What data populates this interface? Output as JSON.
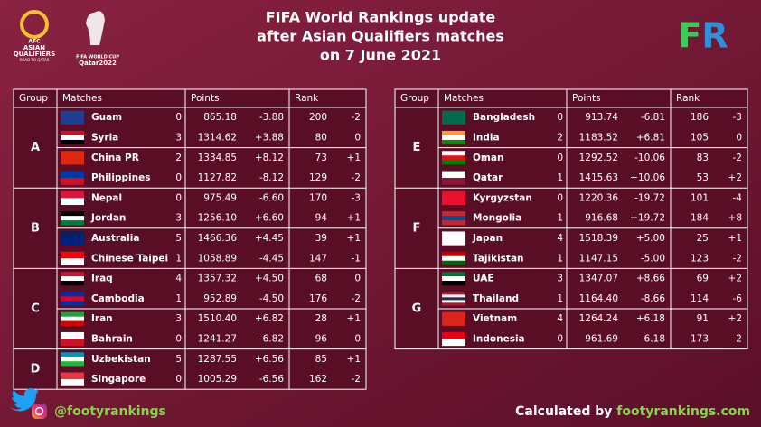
{
  "header": {
    "title_lines": [
      "FIFA World Rankings update",
      "after Asian Qualifiers matches",
      "on 7 June 2021"
    ]
  },
  "logos": {
    "afc": [
      "AFC",
      "ASIAN",
      "QUALIFIERS",
      "ROAD TO QATAR"
    ],
    "fifa": [
      "FIFA WORLD CUP",
      "Qatar2022"
    ],
    "fr": "FR"
  },
  "tables": [
    {
      "columns": [
        "Group",
        "Matches",
        "Points",
        "Rank"
      ],
      "groups": [
        {
          "name": "A",
          "rows": [
            [
              "Guam",
              "0",
              "865.18",
              "-3.88",
              "200",
              "-2"
            ],
            [
              "Syria",
              "3",
              "1314.62",
              "+3.88",
              "80",
              "0"
            ],
            [
              "China PR",
              "2",
              "1334.85",
              "+8.12",
              "73",
              "+1"
            ],
            [
              "Philippines",
              "0",
              "1127.82",
              "-8.12",
              "129",
              "-2"
            ]
          ]
        },
        {
          "name": "B",
          "rows": [
            [
              "Nepal",
              "0",
              "975.49",
              "-6.60",
              "170",
              "-3"
            ],
            [
              "Jordan",
              "3",
              "1256.10",
              "+6.60",
              "94",
              "+1"
            ],
            [
              "Australia",
              "5",
              "1466.36",
              "+4.45",
              "39",
              "+1"
            ],
            [
              "Chinese Taipei",
              "1",
              "1058.89",
              "-4.45",
              "147",
              "-1"
            ]
          ]
        },
        {
          "name": "C",
          "rows": [
            [
              "Iraq",
              "4",
              "1357.32",
              "+4.50",
              "68",
              "0"
            ],
            [
              "Cambodia",
              "1",
              "952.89",
              "-4.50",
              "176",
              "-2"
            ],
            [
              "Iran",
              "3",
              "1510.40",
              "+6.82",
              "28",
              "+1"
            ],
            [
              "Bahrain",
              "0",
              "1241.27",
              "-6.82",
              "96",
              "0"
            ]
          ]
        },
        {
          "name": "D",
          "rows": [
            [
              "Uzbekistan",
              "5",
              "1287.55",
              "+6.56",
              "85",
              "+1"
            ],
            [
              "Singapore",
              "0",
              "1005.29",
              "-6.56",
              "162",
              "-2"
            ]
          ]
        }
      ]
    },
    {
      "columns": [
        "Group",
        "Matches",
        "Points",
        "Rank"
      ],
      "groups": [
        {
          "name": "E",
          "rows": [
            [
              "Bangladesh",
              "0",
              "913.74",
              "-6.81",
              "186",
              "-3"
            ],
            [
              "India",
              "2",
              "1183.52",
              "+6.81",
              "105",
              "0"
            ],
            [
              "Oman",
              "0",
              "1292.52",
              "-10.06",
              "83",
              "-2"
            ],
            [
              "Qatar",
              "1",
              "1415.63",
              "+10.06",
              "53",
              "+2"
            ]
          ]
        },
        {
          "name": "F",
          "rows": [
            [
              "Kyrgyzstan",
              "0",
              "1220.36",
              "-19.72",
              "101",
              "-4"
            ],
            [
              "Mongolia",
              "1",
              "916.68",
              "+19.72",
              "184",
              "+8"
            ],
            [
              "Japan",
              "4",
              "1518.39",
              "+5.00",
              "25",
              "+1"
            ],
            [
              "Tajikistan",
              "1",
              "1147.15",
              "-5.00",
              "123",
              "-2"
            ]
          ]
        },
        {
          "name": "G",
          "rows": [
            [
              "UAE",
              "3",
              "1347.07",
              "+8.66",
              "69",
              "+2"
            ],
            [
              "Thailand",
              "1",
              "1164.40",
              "-8.66",
              "114",
              "-6"
            ],
            [
              "Vietnam",
              "4",
              "1264.24",
              "+6.18",
              "91",
              "+2"
            ],
            [
              "Indonesia",
              "0",
              "961.69",
              "-6.18",
              "173",
              "-2"
            ]
          ]
        }
      ]
    }
  ],
  "footer": {
    "handle": "@footyrankings",
    "credit_prefix": "Calculated by",
    "credit_site": "footyrankings.com"
  }
}
